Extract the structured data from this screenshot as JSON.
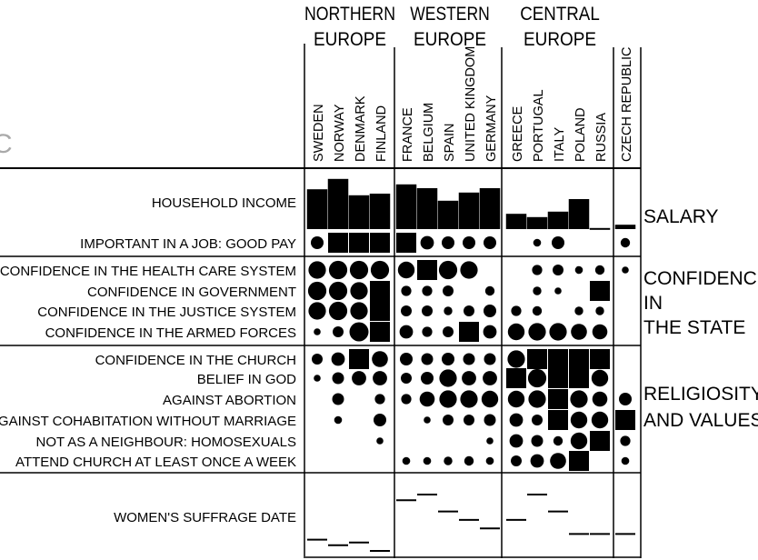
{
  "partial_letter": "C",
  "groups": [
    {
      "id": "northern",
      "line1": "NORTHERN",
      "line2": "EUROPE"
    },
    {
      "id": "western",
      "line1": "WESTERN",
      "line2": "EUROPE"
    },
    {
      "id": "central",
      "line1": "CENTRAL",
      "line2": "EUROPE"
    }
  ],
  "countries": [
    "SWEDEN",
    "NORWAY",
    "DENMARK",
    "FINLAND",
    "FRANCE",
    "BELGIUM",
    "SPAIN",
    "UNITED KINGDOM",
    "GERMANY",
    "GREECE",
    "PORTUGAL",
    "ITALY",
    "POLAND",
    "RUSSIA",
    "CZECH REPUBLIC"
  ],
  "rows": [
    {
      "id": "household-income",
      "label": "HOUSEHOLD INCOME",
      "kind": "bar"
    },
    {
      "id": "good-pay",
      "label": "IMPORTANT IN A JOB: GOOD PAY",
      "kind": "dot"
    },
    {
      "id": "conf-health",
      "label": "CONFIDENCE IN THE HEALTH CARE SYSTEM",
      "kind": "dot"
    },
    {
      "id": "conf-gov",
      "label": "CONFIDENCE IN GOVERNMENT",
      "kind": "dot"
    },
    {
      "id": "conf-justice",
      "label": "CONFIDENCE IN THE JUSTICE SYSTEM",
      "kind": "dot"
    },
    {
      "id": "conf-armed",
      "label": "CONFIDENCE IN THE ARMED FORCES",
      "kind": "dot"
    },
    {
      "id": "conf-church",
      "label": "CONFIDENCE IN THE CHURCH",
      "kind": "dot"
    },
    {
      "id": "belief-god",
      "label": "BELIEF IN GOD",
      "kind": "dot"
    },
    {
      "id": "against-abortion",
      "label": "AGAINST ABORTION",
      "kind": "dot"
    },
    {
      "id": "against-cohab",
      "label": "AGAINST COHABITATION WITHOUT MARRIAGE",
      "kind": "dot"
    },
    {
      "id": "neighbour-homo",
      "label": "NOT AS A NEIGHBOUR: HOMOSEXUALS",
      "kind": "dot"
    },
    {
      "id": "attend-church",
      "label": "ATTEND CHURCH AT LEAST ONCE A WEEK",
      "kind": "dot"
    },
    {
      "id": "suffrage",
      "label": "WOMEN'S SUFFRAGE DATE",
      "kind": "tick"
    }
  ],
  "sections": [
    {
      "id": "salary",
      "lines": [
        "SALARY"
      ]
    },
    {
      "id": "state",
      "lines": [
        "CONFIDENCE",
        "IN",
        "THE STATE"
      ]
    },
    {
      "id": "religiosity",
      "lines": [
        "RELIGIOSITY",
        "AND VALUES"
      ]
    }
  ],
  "chart_data": {
    "type": "table",
    "columns": [
      "SWEDEN",
      "NORWAY",
      "DENMARK",
      "FINLAND",
      "FRANCE",
      "BELGIUM",
      "SPAIN",
      "UNITED KINGDOM",
      "GERMANY",
      "GREECE",
      "PORTUGAL",
      "ITALY",
      "POLAND",
      "RUSSIA",
      "CZECH REPUBLIC"
    ],
    "household_income": [
      0.73,
      0.92,
      0.62,
      0.65,
      0.82,
      0.75,
      0.52,
      0.67,
      0.75,
      0.28,
      0.22,
      0.32,
      0.55,
      0.02,
      0.08
    ],
    "dot_levels": {
      "good-pay": [
        0.55,
        1,
        1,
        1,
        1,
        0.6,
        0.55,
        0.55,
        0.55,
        0,
        0.25,
        0.55,
        0,
        0,
        0.35
      ],
      "conf-health": [
        0.85,
        0.9,
        0.9,
        0.9,
        0.8,
        1,
        0.9,
        0.85,
        0,
        0,
        0.4,
        0.45,
        0.25,
        0.35,
        0.2
      ],
      "conf-gov": [
        0.9,
        0.9,
        0.85,
        1,
        0.4,
        0.4,
        0.45,
        0,
        0.35,
        0,
        0.3,
        0.2,
        0,
        1,
        0
      ],
      "conf-justice": [
        0.85,
        0.9,
        0.85,
        1,
        0.45,
        0.45,
        0.3,
        0.45,
        0.55,
        0.4,
        0.35,
        0,
        0.3,
        0.3,
        0
      ],
      "conf-armed": [
        0.2,
        0.45,
        0.95,
        1,
        0.6,
        0.4,
        0.45,
        1,
        0.6,
        0.8,
        0.85,
        0.85,
        0.75,
        0.7,
        0
      ],
      "conf-church": [
        0.45,
        0.6,
        1,
        0.75,
        0.55,
        0.5,
        0.55,
        0.5,
        0.5,
        0.85,
        1,
        1,
        1,
        1,
        0
      ],
      "belief-god": [
        0.2,
        0.5,
        0.65,
        0.65,
        0.45,
        0.55,
        0.85,
        0.65,
        0.65,
        1,
        0.9,
        1,
        1,
        0.8,
        0
      ],
      "against-abortion": [
        0,
        0.5,
        0,
        0.4,
        0.4,
        0.7,
        0.85,
        0.85,
        0.8,
        0.8,
        0.85,
        1,
        0.85,
        0.7,
        0.55
      ],
      "against-cohab": [
        0,
        0.25,
        0,
        0.55,
        0,
        0.2,
        0.45,
        0.45,
        0.5,
        0.6,
        0.45,
        1,
        0.8,
        0.8,
        1
      ],
      "neighbour-homo": [
        0,
        0,
        0,
        0.2,
        0,
        0,
        0,
        0,
        0.2,
        0.6,
        0.5,
        0.35,
        0.8,
        1,
        0.4
      ],
      "attend-church": [
        0,
        0,
        0,
        0,
        0.25,
        0.25,
        0.3,
        0.35,
        0.25,
        0.45,
        0.6,
        0.75,
        1,
        0,
        0.25
      ]
    },
    "suffrage_level": [
      0.2,
      0.1,
      0.15,
      0,
      0.9,
      1,
      0.7,
      0.55,
      0.4,
      0.55,
      1,
      0.7,
      0.3,
      0.3,
      0.3
    ]
  }
}
